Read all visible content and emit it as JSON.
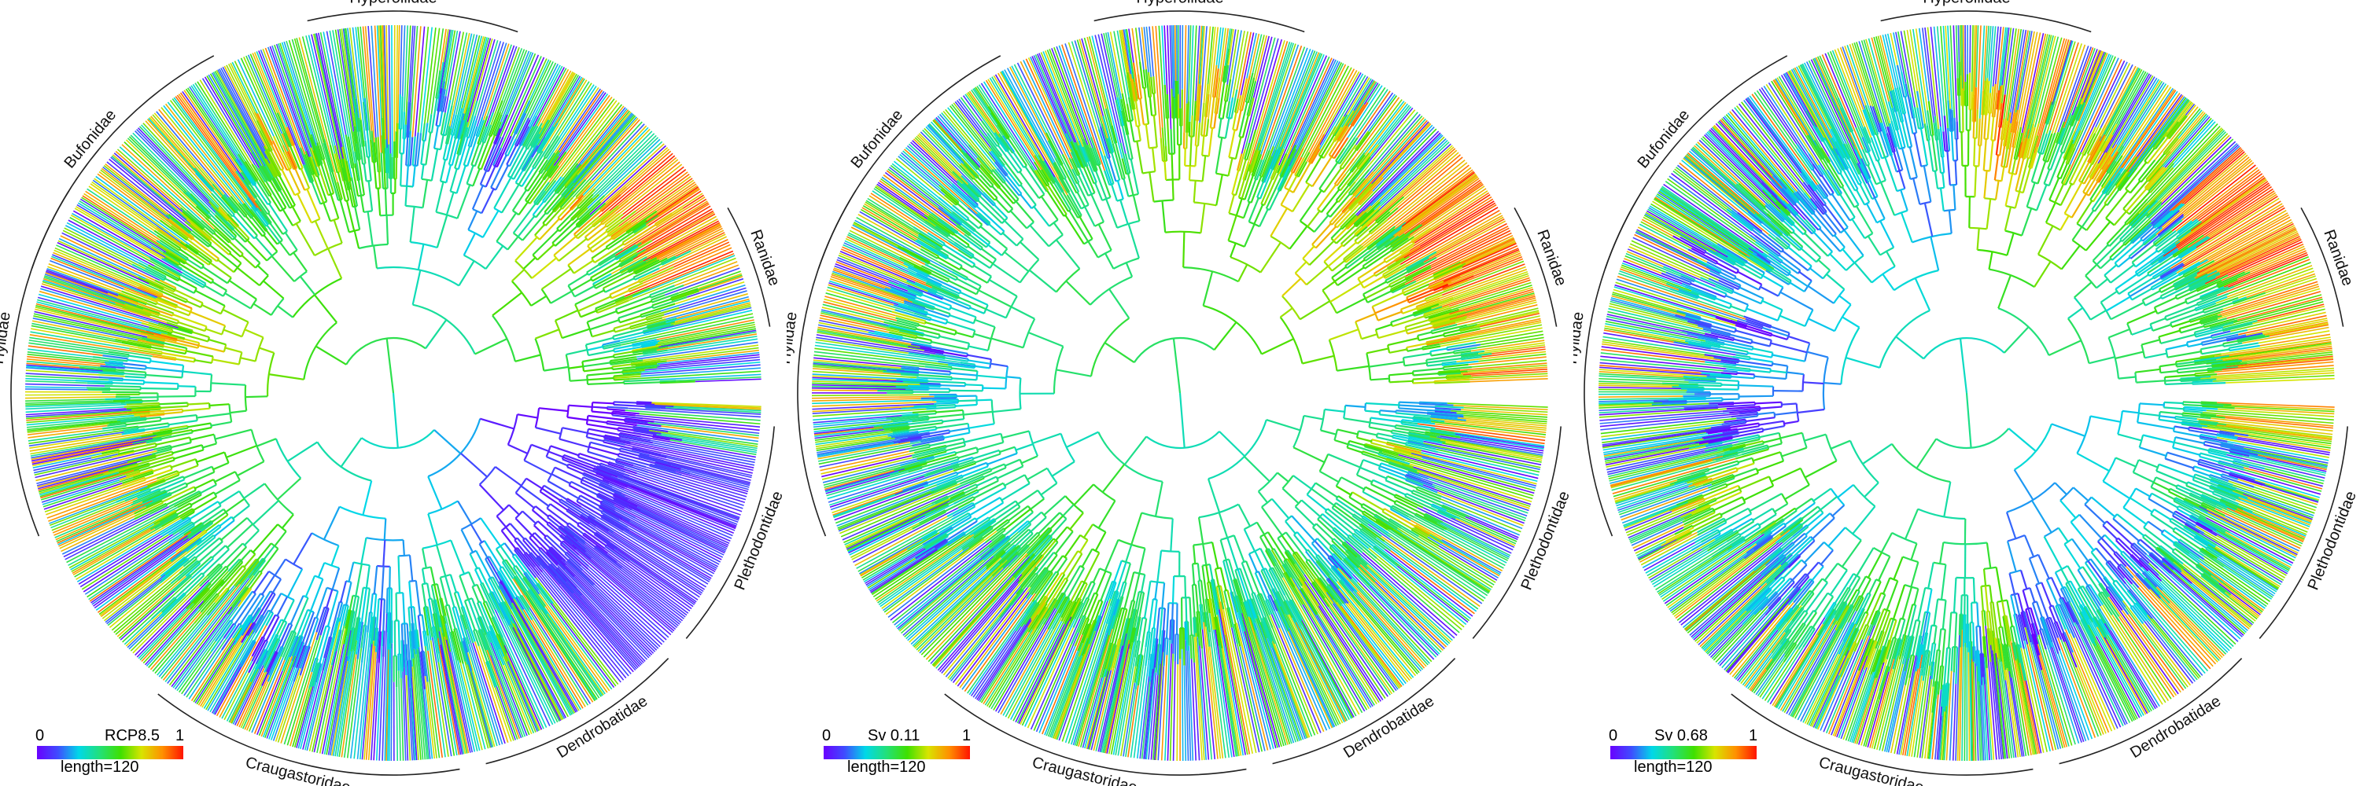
{
  "colors": {
    "ramp": [
      "#6a00ff",
      "#3f4cff",
      "#00d8e8",
      "#22e07a",
      "#3fe000",
      "#d8e400",
      "#ff9000",
      "#ff1400"
    ],
    "annotation": "#222222"
  },
  "panels": [
    {
      "legend": {
        "min": "0",
        "max": "1",
        "title": "RCP8.5",
        "scale": "length=120"
      },
      "seed": 11
    },
    {
      "legend": {
        "min": "0",
        "max": "1",
        "title": "Sv 0.11",
        "scale": "length=120"
      },
      "seed": 23
    },
    {
      "legend": {
        "min": "0",
        "max": "1",
        "title": "Sv 0.68",
        "scale": "length=120"
      },
      "seed": 37
    }
  ],
  "clades": [
    {
      "name": "Hyperoliidae"
    },
    {
      "name": "Ranidae"
    },
    {
      "name": "Plethodontidae"
    },
    {
      "name": "Dendrobatidae"
    },
    {
      "name": "Craugastoridae"
    },
    {
      "name": "Hylidae"
    },
    {
      "name": "Bufonidae"
    }
  ]
}
